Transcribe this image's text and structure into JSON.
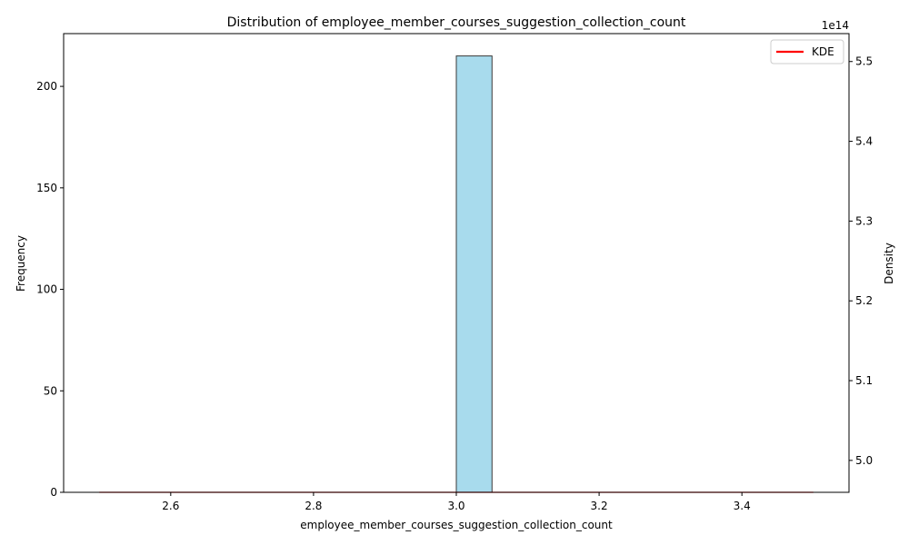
{
  "chart_data": {
    "type": "bar",
    "title": "Distribution of employee_member_courses_suggestion_collection_count",
    "xlabel": "employee_member_courses_suggestion_collection_count",
    "ylabel": "Frequency",
    "y2label": "Density",
    "y2_offset_text": "1e14",
    "xlim": [
      2.45,
      3.55
    ],
    "ylim": [
      0,
      226
    ],
    "y2lim": [
      4.96,
      5.535
    ],
    "x_ticks": [
      2.6,
      2.8,
      3.0,
      3.2,
      3.4
    ],
    "x_tick_labels": [
      "2.6",
      "2.8",
      "3.0",
      "3.2",
      "3.4"
    ],
    "y_ticks": [
      0,
      50,
      100,
      150,
      200
    ],
    "y_tick_labels": [
      "0",
      "50",
      "100",
      "150",
      "200"
    ],
    "y2_ticks": [
      5.0,
      5.1,
      5.2,
      5.3,
      5.4,
      5.5
    ],
    "y2_tick_labels": [
      "5.0",
      "5.1",
      "5.2",
      "5.3",
      "5.4",
      "5.5"
    ],
    "bins": [
      {
        "x0": 3.0,
        "x1": 3.05,
        "count": 215
      }
    ],
    "kde_line": {
      "x": [
        2.5,
        3.5
      ],
      "y": [
        0,
        0
      ]
    },
    "legend": {
      "position": "top-right",
      "entries": [
        {
          "label": "KDE",
          "color": "#ff0000"
        }
      ]
    },
    "colors": {
      "bar_fill": "#a8dbed",
      "bar_edge": "#3a3a3a",
      "kde": "#ff0000"
    },
    "grid": false
  }
}
